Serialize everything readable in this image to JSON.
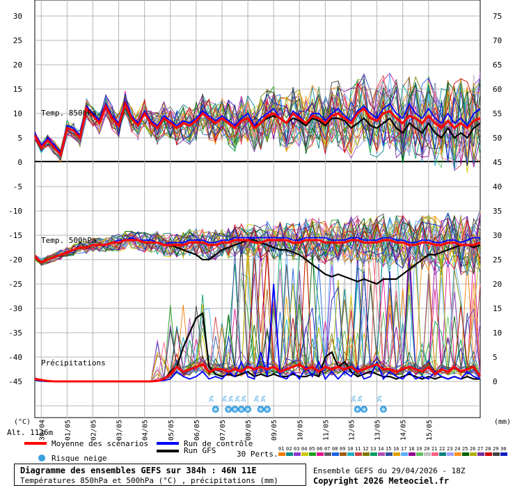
{
  "chart_data": {
    "type": "line",
    "title": "Diagramme des ensembles GEFS sur 384h : 46N 11E",
    "subtitle": "Températures 850hPa et 500hPa (°C) , précipitations (mm)",
    "panels": {
      "t850": {
        "label": "Temp. 850hPa",
        "yticks_left": [
          0,
          5,
          10,
          15,
          20,
          25,
          30
        ],
        "mean": [
          5.5,
          3,
          4.5,
          3,
          1.5,
          7,
          6.5,
          5,
          11,
          9.5,
          8,
          11.5,
          9,
          7.5,
          12,
          9,
          7.5,
          10,
          8,
          7,
          9,
          8,
          7,
          8,
          7.5,
          8.5,
          10,
          9,
          8,
          9,
          8,
          7,
          8.5,
          9,
          7,
          8,
          9.5,
          10,
          9,
          8,
          10,
          9,
          8,
          9.5,
          9,
          8,
          9.5,
          10,
          9,
          8,
          10,
          11,
          9,
          8.5,
          10,
          10.5,
          9,
          8,
          9.5,
          9,
          8,
          9.5,
          8,
          7,
          8.5,
          7,
          8,
          7,
          8.5,
          9
        ],
        "control": [
          6,
          3.5,
          5,
          3.5,
          2,
          7.5,
          7,
          5.5,
          11.5,
          10,
          8.5,
          12,
          9.5,
          8,
          12.5,
          9.5,
          8,
          10.5,
          8.5,
          7.5,
          9.5,
          8.5,
          7.5,
          8.5,
          8,
          9,
          10.5,
          9.5,
          8.5,
          9.5,
          8.5,
          7.5,
          9,
          10,
          7.5,
          9,
          10,
          11,
          9,
          8,
          10.5,
          9.5,
          8,
          10,
          10,
          8.5,
          10,
          11,
          9.5,
          8.5,
          10.5,
          11.5,
          10,
          9,
          11,
          12,
          10,
          9,
          12,
          10,
          9,
          11,
          9,
          8,
          10,
          8,
          9,
          7.5,
          10,
          11
        ],
        "gfs": [
          5.5,
          3,
          4.5,
          3,
          1.5,
          7,
          6.5,
          5,
          11,
          9.5,
          8,
          11.5,
          9,
          7.5,
          12,
          9,
          7.5,
          10,
          8,
          7,
          9,
          8,
          7,
          8,
          7.5,
          8.5,
          10,
          9,
          8,
          9,
          8,
          7,
          8.5,
          9,
          7.5,
          8,
          9,
          9.5,
          9,
          8,
          9,
          8.5,
          7.5,
          9,
          8.5,
          7.5,
          9,
          9,
          8.5,
          7,
          8,
          9,
          7.5,
          7,
          8,
          9,
          7,
          6,
          8,
          7,
          6,
          8,
          6,
          5,
          7,
          5,
          6,
          5,
          7,
          8
        ]
      },
      "t500": {
        "label": "Temp. 500hPa",
        "yticks_left": [
          -25,
          -20,
          -15,
          -10,
          -5
        ],
        "mean": [
          -19.5,
          -20.5,
          -20,
          -19.5,
          -19,
          -18.5,
          -18,
          -17.5,
          -17.5,
          -17,
          -17,
          -17,
          -16.5,
          -16.5,
          -16,
          -16,
          -16,
          -16.5,
          -16.5,
          -16.5,
          -17,
          -17,
          -17,
          -17,
          -16.5,
          -16.5,
          -16.5,
          -17,
          -17,
          -16.5,
          -16.5,
          -16,
          -16,
          -16,
          -16.5,
          -16.5,
          -16,
          -16,
          -16,
          -16,
          -16.5,
          -16.5,
          -16,
          -16,
          -16,
          -16.5,
          -16.5,
          -16.5,
          -16.5,
          -16,
          -16,
          -16.5,
          -16.5,
          -16.5,
          -16,
          -16,
          -16.5,
          -16.5,
          -17,
          -17,
          -16.5,
          -16.5,
          -17,
          -17,
          -16.5,
          -16.5,
          -17,
          -17,
          -17,
          -16.5
        ],
        "control": [
          -19.5,
          -20.5,
          -20,
          -19.5,
          -19,
          -18.5,
          -18,
          -17.5,
          -17.5,
          -17,
          -17,
          -17,
          -16.5,
          -16,
          -16,
          -15.5,
          -16,
          -16,
          -16,
          -16.5,
          -17,
          -16.5,
          -16.5,
          -16.5,
          -16,
          -16,
          -16,
          -16.5,
          -16.5,
          -16,
          -16,
          -15.5,
          -15.5,
          -15.5,
          -15.5,
          -15.5,
          -15.5,
          -15.5,
          -15.5,
          -15.5,
          -16,
          -16,
          -15.5,
          -15.5,
          -15.5,
          -15.5,
          -16,
          -16,
          -16,
          -15.5,
          -15.5,
          -16,
          -16,
          -16,
          -15.5,
          -15.5,
          -16,
          -16,
          -16.5,
          -16.5,
          -16,
          -16,
          -16.5,
          -16.5,
          -16,
          -16,
          -16.5,
          -16,
          -15.5,
          -15.5
        ],
        "gfs": [
          -19.5,
          -20.5,
          -20,
          -19.5,
          -19,
          -18.5,
          -18,
          -17.5,
          -17.5,
          -17,
          -17,
          -17,
          -16.5,
          -16.5,
          -16,
          -16,
          -16,
          -16.5,
          -16.5,
          -16.5,
          -17,
          -17,
          -17.5,
          -18,
          -18.5,
          -19,
          -20,
          -20,
          -19,
          -18,
          -17.5,
          -17,
          -16.5,
          -16,
          -16,
          -16.5,
          -17,
          -17.5,
          -18,
          -18,
          -18.5,
          -19,
          -20,
          -21,
          -22,
          -23,
          -23.5,
          -23,
          -23.5,
          -24,
          -24.5,
          -24,
          -24.5,
          -25,
          -24,
          -24,
          -24,
          -23,
          -22,
          -21,
          -20,
          -19,
          -19,
          -18.5,
          -18,
          -17.5,
          -17,
          -17,
          -17.5,
          -17
        ]
      },
      "precip": {
        "label": "Précipitations",
        "yticks_left": [
          -45,
          -40,
          -35,
          -30
        ],
        "mean": [
          0.5,
          0.3,
          0.1,
          0,
          0,
          0,
          0,
          0,
          0,
          0,
          0,
          0,
          0,
          0,
          0,
          0,
          0,
          0,
          0,
          0.1,
          0.5,
          1.5,
          3,
          2,
          2.5,
          3,
          3.5,
          2,
          2.5,
          2.5,
          2,
          2.5,
          2,
          3,
          2.5,
          3,
          2.5,
          3,
          2,
          2.5,
          3,
          3.5,
          2.5,
          3,
          2,
          3,
          2.5,
          3,
          2.5,
          3,
          2,
          2.5,
          3,
          3.5,
          2.5,
          2.5,
          2,
          2.5,
          3,
          2.5,
          2,
          3,
          1.5,
          2.5,
          2,
          3,
          2,
          2.5,
          3,
          1
        ],
        "control": [
          0.3,
          0.1,
          0,
          0,
          0,
          0,
          0,
          0,
          0,
          0,
          0,
          0,
          0,
          0,
          0,
          0,
          0,
          0,
          0,
          0.1,
          0.2,
          0.5,
          2,
          1,
          0.5,
          1,
          2,
          0.5,
          1,
          0.5,
          2,
          1,
          4,
          1,
          0.5,
          6,
          1,
          20,
          1,
          0.5,
          2,
          0.5,
          3,
          1,
          4,
          0.5,
          2,
          0.5,
          2,
          1,
          3,
          0.5,
          1,
          4,
          0.5,
          2,
          1,
          0.5,
          2,
          0.5,
          1,
          0.5,
          2,
          1,
          0.5,
          1,
          0.5,
          2,
          1,
          0.5
        ],
        "gfs": [
          0.3,
          0.1,
          0,
          0,
          0,
          0,
          0,
          0,
          0,
          0,
          0,
          0,
          0,
          0,
          0,
          0,
          0,
          0,
          0,
          0.1,
          0.3,
          2,
          3,
          7,
          10,
          13,
          14,
          3,
          1.5,
          1,
          1.5,
          1,
          1.5,
          2,
          1,
          1.5,
          1,
          1.5,
          1,
          1,
          1.5,
          1,
          1,
          1.5,
          1,
          5,
          6,
          3,
          4,
          2,
          1,
          1.5,
          2,
          1.5,
          1,
          1,
          0.5,
          1,
          1.5,
          1,
          0.5,
          1,
          0.5,
          1,
          0.5,
          1,
          0.5,
          1,
          0.5,
          0.5
        ]
      }
    },
    "yticks_right": [
      0,
      5,
      10,
      15,
      20,
      25,
      30,
      35,
      40,
      45,
      50,
      55,
      60,
      65,
      70,
      75
    ],
    "xticks": [
      "30/04",
      "01/05",
      "02/05",
      "03/05",
      "04/05",
      "05/05",
      "06/05",
      "07/05",
      "08/05",
      "09/05",
      "10/05",
      "11/05",
      "12/05",
      "13/05",
      "14/05",
      "15/05"
    ],
    "left_unit": "(°C)",
    "right_unit": "(mm)",
    "altitude": "Alt. 1136m",
    "snow_marker": "3%",
    "snow_x": [
      28,
      30,
      31,
      32,
      33,
      35,
      36,
      50,
      51,
      54
    ],
    "legend": {
      "mean": "Moyenne des scénarios",
      "control": "Run de contrôle",
      "gfs": "Run GFS",
      "snow": "Risque neige",
      "perts": "30 Perts."
    },
    "pert_ids": [
      "01",
      "02",
      "03",
      "04",
      "05",
      "06",
      "07",
      "08",
      "09",
      "10",
      "11",
      "12",
      "13",
      "14",
      "15",
      "16",
      "17",
      "18",
      "19",
      "20",
      "21",
      "22",
      "23",
      "24",
      "25",
      "26",
      "27",
      "28",
      "29",
      "30"
    ],
    "pert_colors": [
      "#f07a00",
      "#0a8a8a",
      "#8a3ad0",
      "#c9c900",
      "#20a020",
      "#e01090",
      "#606060",
      "#1a60e0",
      "#a05a10",
      "#20b0c0",
      "#d04040",
      "#7a7a00",
      "#00a060",
      "#b050b0",
      "#3050a0",
      "#e0a000",
      "#5ab0ff",
      "#900090",
      "#60c060",
      "#c0c0c0",
      "#ff6080",
      "#008080",
      "#a0a0ff",
      "#ff9020",
      "#006000",
      "#b0b000",
      "#7030a0",
      "#d00000",
      "#404040",
      "#1020c0"
    ],
    "colors": {
      "mean": "#ff0000",
      "control": "#0000ff",
      "gfs": "#000000",
      "grid": "#b4b4b4",
      "snow": "#3aa0e0"
    },
    "footer": {
      "run": "Ensemble GEFS du 29/04/2026 - 18Z",
      "copyright": "Copyright 2026 Meteociel.fr"
    }
  }
}
